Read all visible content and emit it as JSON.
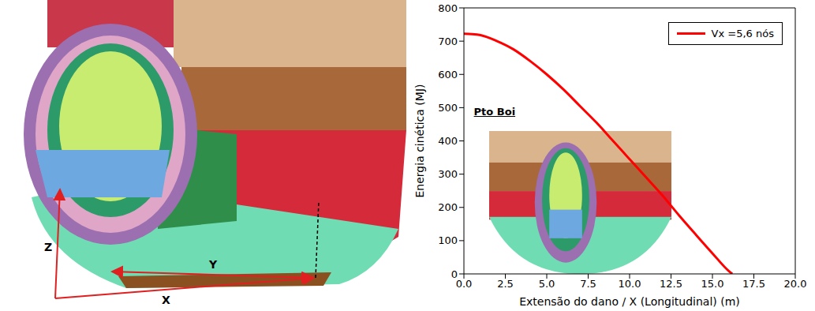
{
  "chart_data": {
    "type": "line",
    "x_label": "Extensão do dano / X (Longitudinal) (m)",
    "y_label": "Energia cinética (MJ)",
    "annotation": "Pto Boi",
    "xlim": [
      0,
      20
    ],
    "xticks": [
      {
        "value": 0,
        "label": "0.0"
      },
      2.5,
      {
        "value": 5,
        "label": "5.0"
      },
      7.5,
      {
        "value": 10,
        "label": "10.0"
      },
      12.5,
      {
        "value": 15,
        "label": "15.0"
      },
      17.5,
      {
        "value": 20,
        "label": "20.0"
      }
    ],
    "ylim": [
      0,
      800
    ],
    "yticks": [
      0,
      100,
      200,
      300,
      400,
      500,
      600,
      700,
      800
    ],
    "grid": false,
    "legend": "upper right",
    "series": [
      {
        "name": "Vx =5,6 nós",
        "color": "#ff0000",
        "line_style": "solid",
        "marker": "none",
        "x": [
          0,
          0.5,
          1,
          2,
          3,
          4,
          5,
          6,
          7,
          8,
          9,
          10,
          11,
          12,
          13,
          14,
          15,
          16,
          16.2
        ],
        "values": [
          722,
          721,
          718,
          700,
          675,
          640,
          600,
          555,
          505,
          455,
          400,
          345,
          290,
          235,
          175,
          118,
          62,
          8,
          0
        ]
      }
    ]
  },
  "left_panel": {
    "axis_labels": {
      "z": "Z",
      "y": "Y",
      "x": "X"
    }
  }
}
